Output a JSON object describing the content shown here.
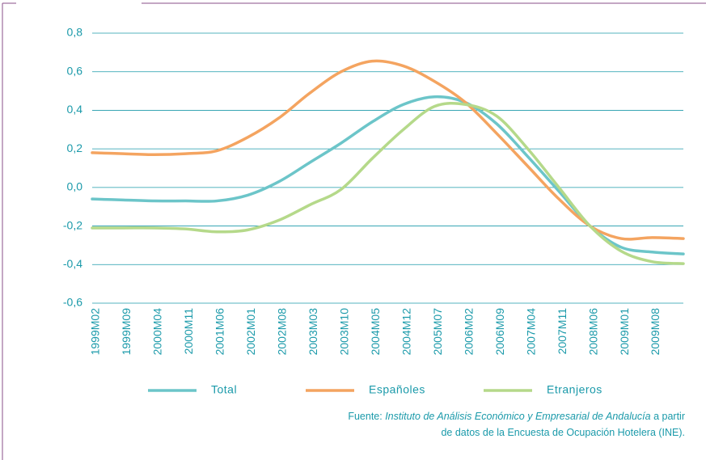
{
  "chart_data": {
    "type": "line",
    "categories": [
      "1999M02",
      "1999M09",
      "2000M04",
      "2000M11",
      "2001M06",
      "2002M01",
      "2002M08",
      "2003M03",
      "2003M10",
      "2004M05",
      "2004M12",
      "2005M07",
      "2006M02",
      "2006M09",
      "2007M04",
      "2007M11",
      "2008M06",
      "2009M01",
      "2009M08",
      null
    ],
    "series": [
      {
        "name": "Total",
        "color": "#6cc5c9",
        "values": [
          -0.06,
          -0.065,
          -0.07,
          -0.07,
          -0.07,
          -0.04,
          0.03,
          0.13,
          0.23,
          0.34,
          0.43,
          0.47,
          0.44,
          0.33,
          0.16,
          -0.02,
          -0.2,
          -0.31,
          -0.335,
          -0.345
        ]
      },
      {
        "name": "Españoles",
        "color": "#f4a460",
        "values": [
          0.18,
          0.175,
          0.17,
          0.175,
          0.19,
          0.26,
          0.36,
          0.49,
          0.6,
          0.655,
          0.63,
          0.55,
          0.44,
          0.28,
          0.11,
          -0.06,
          -0.2,
          -0.265,
          -0.26,
          -0.265
        ]
      },
      {
        "name": "Etranjeros",
        "color": "#b5d98a",
        "values": [
          -0.21,
          -0.21,
          -0.21,
          -0.215,
          -0.23,
          -0.22,
          -0.17,
          -0.09,
          -0.01,
          0.15,
          0.3,
          0.42,
          0.43,
          0.37,
          0.2,
          0.0,
          -0.2,
          -0.33,
          -0.385,
          -0.395
        ]
      }
    ],
    "ylim": [
      -0.6,
      0.8
    ],
    "yticks": [
      {
        "value": -0.6,
        "label": "-0,6"
      },
      {
        "value": -0.4,
        "label": "-0,4"
      },
      {
        "value": -0.2,
        "label": "-0,2"
      },
      {
        "value": 0,
        "label": "0,0"
      },
      {
        "value": 0.2,
        "label": "0,2"
      },
      {
        "value": 0.4,
        "label": "0,4"
      },
      {
        "value": 0.6,
        "label": "0,6"
      },
      {
        "value": 0.8,
        "label": "0,8"
      }
    ],
    "grid": true,
    "legend": "bottom",
    "source": {
      "prefix": "Fuente: ",
      "institution": "Instituto de Análisis Económico y Empresarial de Andalucía",
      "suffix": " a partir",
      "line2": "de datos de la Encuesta de Ocupación Hotelera (INE)."
    }
  }
}
